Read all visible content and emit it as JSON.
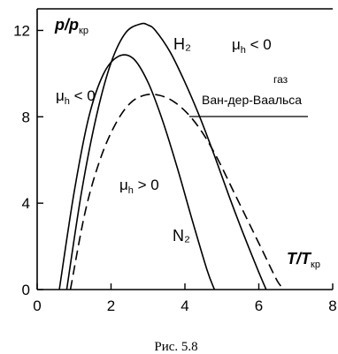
{
  "chart_data": {
    "type": "line",
    "xlim": [
      0,
      8
    ],
    "ylim": [
      0,
      13
    ],
    "x_ticks": [
      "0",
      "2",
      "4",
      "6",
      "8"
    ],
    "x_tick_values": [
      0,
      2,
      4,
      6,
      8
    ],
    "y_ticks": [
      "0",
      "4",
      "8",
      "12"
    ],
    "y_tick_values": [
      0,
      4,
      8,
      12
    ],
    "ylabel": {
      "main": "p/p",
      "sub": "кр"
    },
    "xlabel": {
      "main": "T/T",
      "sub": "кр"
    },
    "series": [
      {
        "name": "H₂",
        "style": "solid",
        "x": [
          0.8,
          1.2,
          1.6,
          2.0,
          2.4,
          2.8,
          3.0,
          3.2,
          3.6,
          4.0,
          4.4,
          4.8,
          5.2,
          5.6,
          6.0,
          6.2
        ],
        "y": [
          0.0,
          4.5,
          8.0,
          10.5,
          11.9,
          12.3,
          12.25,
          12.0,
          11.0,
          9.6,
          8.0,
          6.2,
          4.3,
          2.5,
          0.8,
          0.0
        ]
      },
      {
        "name": "N₂",
        "style": "solid",
        "x": [
          0.6,
          1.0,
          1.4,
          1.8,
          2.2,
          2.6,
          3.0,
          3.4,
          3.8,
          4.2,
          4.6,
          4.8
        ],
        "y": [
          0.0,
          4.5,
          8.0,
          10.0,
          10.8,
          10.7,
          9.6,
          7.8,
          5.6,
          3.2,
          0.9,
          0.0
        ]
      },
      {
        "name": "газ Ван-дер-Ваальса",
        "style": "dashed",
        "x": [
          0.9,
          1.3,
          1.7,
          2.1,
          2.5,
          2.9,
          3.3,
          3.7,
          4.1,
          4.5,
          4.9,
          5.3,
          5.7,
          6.1,
          6.5,
          6.7
        ],
        "y": [
          0.0,
          3.6,
          6.0,
          7.6,
          8.6,
          9.0,
          9.0,
          8.7,
          8.1,
          7.2,
          6.0,
          4.6,
          3.2,
          1.8,
          0.4,
          0.0
        ]
      }
    ],
    "annotations": {
      "h2_label": "H₂",
      "n2_label": "N₂",
      "mu": "μ",
      "mu_sub": "h",
      "ineq_lt": " < 0",
      "ineq_gt": " > 0",
      "gas_line1": "газ",
      "gas_line2": "Ван-дер-Ваальса"
    },
    "grid": false,
    "caption": "Рис. 5.8"
  }
}
